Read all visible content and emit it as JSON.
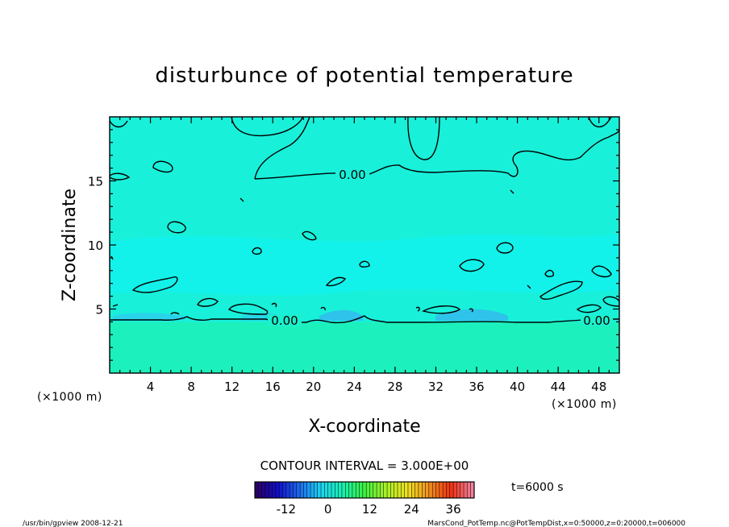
{
  "chart_data": {
    "type": "heatmap",
    "title": "disturbunce of potential temperature",
    "xlabel": "X-coordinate",
    "ylabel": "Z-coordinate",
    "x_unit": "(×1000 m)",
    "z_unit": "(×1000 m)",
    "xlim": [
      0,
      50
    ],
    "ylim": [
      0,
      20
    ],
    "x_ticks": [
      4,
      8,
      12,
      16,
      20,
      24,
      28,
      32,
      36,
      40,
      44,
      48
    ],
    "y_ticks": [
      5,
      10,
      15
    ],
    "grid": false,
    "contour_interval_text": "CONTOUR INTERVAL = 3.000E+00",
    "contour_labels": [
      {
        "text": "0.00",
        "x": 23.8,
        "z": 14.0
      },
      {
        "text": "0.00",
        "x": 17.0,
        "z": 3.9
      },
      {
        "text": "0.00",
        "x": 47.5,
        "z": 3.9
      }
    ],
    "zero_contour_base_z": 4.0,
    "field_colors": {
      "lower": "#1cf0b8",
      "upper": "#18f0d6",
      "mid_band": "#10f2ee",
      "negative": "#34c8f0"
    },
    "colorbar": {
      "range": [
        -21,
        42
      ],
      "ticks": [
        -12,
        0,
        12,
        24,
        36
      ],
      "stops": [
        "#2a0066",
        "#1010c8",
        "#1e6cf0",
        "#1cd6f0",
        "#18f0b0",
        "#3cf040",
        "#a8f028",
        "#f0e020",
        "#f09020",
        "#f03010",
        "#f080a0"
      ]
    },
    "time_label": "t=6000 s"
  },
  "footer": {
    "left": "/usr/bin/gpview   2008-12-21",
    "right": "MarsCond_PotTemp.nc@PotTempDist,x=0:50000,z=0:20000,t=006000"
  }
}
